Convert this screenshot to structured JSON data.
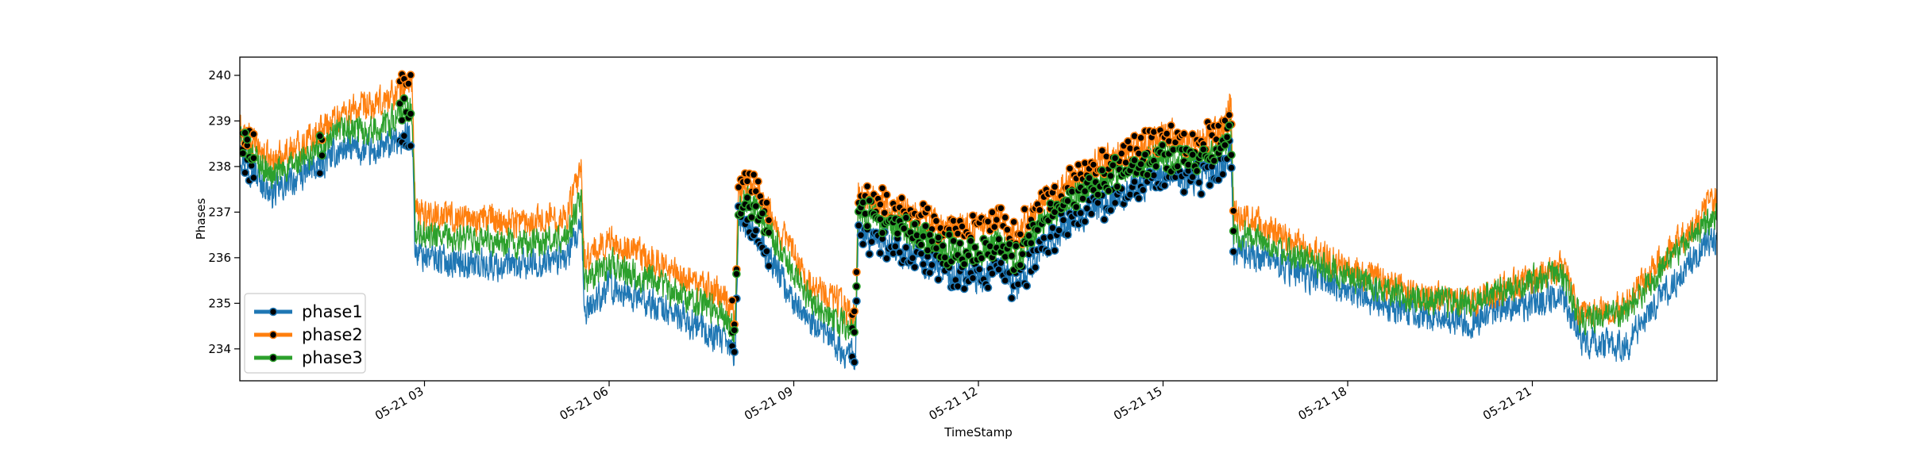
{
  "chart_data": {
    "type": "line",
    "title": "",
    "xlabel": "TimeStamp",
    "ylabel": "Phases",
    "xlim_hours": [
      0,
      24
    ],
    "ylim": [
      233.3,
      240.4
    ],
    "y_ticks": [
      234,
      235,
      236,
      237,
      238,
      239,
      240
    ],
    "x_ticks": [
      {
        "hour": 3,
        "label": "05-21 03"
      },
      {
        "hour": 6,
        "label": "05-21 06"
      },
      {
        "hour": 9,
        "label": "05-21 09"
      },
      {
        "hour": 12,
        "label": "05-21 12"
      },
      {
        "hour": 15,
        "label": "05-21 15"
      },
      {
        "hour": 18,
        "label": "05-21 18"
      },
      {
        "hour": 21,
        "label": "05-21 21"
      }
    ],
    "grid": false,
    "legend_position": "lower-left",
    "series": [
      {
        "name": "phase1",
        "color": "#1f77b4",
        "noise": 0.3,
        "points": [
          [
            0,
            238.3
          ],
          [
            0.5,
            237.4
          ],
          [
            1,
            237.8
          ],
          [
            1.7,
            238.4
          ],
          [
            2.2,
            238.3
          ],
          [
            2.8,
            238.7
          ],
          [
            2.85,
            236.1
          ],
          [
            3.5,
            235.9
          ],
          [
            4.5,
            235.8
          ],
          [
            5.3,
            236.0
          ],
          [
            5.55,
            236.6
          ],
          [
            5.6,
            234.8
          ],
          [
            6,
            235.4
          ],
          [
            7,
            234.8
          ],
          [
            7.8,
            234.2
          ],
          [
            8.05,
            233.9
          ],
          [
            8.1,
            236.8
          ],
          [
            8.3,
            236.7
          ],
          [
            8.6,
            236.0
          ],
          [
            9.2,
            234.6
          ],
          [
            9.8,
            234.0
          ],
          [
            10.0,
            233.8
          ],
          [
            10.05,
            236.5
          ],
          [
            10.5,
            236.3
          ],
          [
            11,
            236.0
          ],
          [
            11.5,
            235.7
          ],
          [
            12,
            235.5
          ],
          [
            12.3,
            235.9
          ],
          [
            12.6,
            235.3
          ],
          [
            13,
            236.2
          ],
          [
            13.5,
            236.8
          ],
          [
            14,
            237.2
          ],
          [
            14.5,
            237.5
          ],
          [
            15,
            237.9
          ],
          [
            15.5,
            237.7
          ],
          [
            16,
            238.0
          ],
          [
            16.1,
            238.5
          ],
          [
            16.15,
            236.2
          ],
          [
            17,
            235.8
          ],
          [
            18,
            235.3
          ],
          [
            19,
            234.8
          ],
          [
            20,
            234.6
          ],
          [
            20.5,
            234.9
          ],
          [
            21,
            235.0
          ],
          [
            21.5,
            235.2
          ],
          [
            21.8,
            234.2
          ],
          [
            22.5,
            234.0
          ],
          [
            23,
            235.0
          ],
          [
            24,
            236.5
          ]
        ]
      },
      {
        "name": "phase2",
        "color": "#ff7f0e",
        "noise": 0.3,
        "points": [
          [
            0,
            238.8
          ],
          [
            0.5,
            238.1
          ],
          [
            1,
            238.5
          ],
          [
            1.7,
            239.2
          ],
          [
            2.2,
            239.3
          ],
          [
            2.8,
            239.9
          ],
          [
            2.85,
            237.0
          ],
          [
            3.5,
            236.9
          ],
          [
            4.5,
            236.8
          ],
          [
            5.3,
            236.9
          ],
          [
            5.55,
            237.9
          ],
          [
            5.6,
            235.9
          ],
          [
            6,
            236.4
          ],
          [
            7,
            235.7
          ],
          [
            7.8,
            235.2
          ],
          [
            8.05,
            234.8
          ],
          [
            8.1,
            237.5
          ],
          [
            8.3,
            237.7
          ],
          [
            8.6,
            237.0
          ],
          [
            9.2,
            235.6
          ],
          [
            9.8,
            234.9
          ],
          [
            10.0,
            234.7
          ],
          [
            10.05,
            237.3
          ],
          [
            10.5,
            237.2
          ],
          [
            11,
            236.9
          ],
          [
            11.5,
            236.7
          ],
          [
            12,
            236.6
          ],
          [
            12.3,
            236.9
          ],
          [
            12.6,
            236.4
          ],
          [
            13,
            237.1
          ],
          [
            13.5,
            237.7
          ],
          [
            14,
            238.1
          ],
          [
            14.5,
            238.4
          ],
          [
            15,
            238.7
          ],
          [
            15.5,
            238.5
          ],
          [
            16,
            238.9
          ],
          [
            16.1,
            239.5
          ],
          [
            16.15,
            237.0
          ],
          [
            17,
            236.4
          ],
          [
            18,
            235.8
          ],
          [
            19,
            235.2
          ],
          [
            20,
            235.0
          ],
          [
            20.5,
            235.3
          ],
          [
            21,
            235.5
          ],
          [
            21.5,
            235.8
          ],
          [
            21.8,
            234.7
          ],
          [
            22.5,
            235.0
          ],
          [
            23,
            235.8
          ],
          [
            24,
            237.3
          ]
        ]
      },
      {
        "name": "phase3",
        "color": "#2ca02c",
        "noise": 0.28,
        "points": [
          [
            0,
            238.6
          ],
          [
            0.5,
            237.8
          ],
          [
            1,
            238.1
          ],
          [
            1.7,
            238.8
          ],
          [
            2.2,
            238.8
          ],
          [
            2.8,
            239.3
          ],
          [
            2.85,
            236.5
          ],
          [
            3.5,
            236.4
          ],
          [
            4.5,
            236.3
          ],
          [
            5.3,
            236.4
          ],
          [
            5.55,
            237.3
          ],
          [
            5.6,
            235.4
          ],
          [
            6,
            235.9
          ],
          [
            7,
            235.3
          ],
          [
            7.8,
            234.8
          ],
          [
            8.05,
            234.4
          ],
          [
            8.1,
            237.2
          ],
          [
            8.3,
            237.3
          ],
          [
            8.6,
            236.6
          ],
          [
            9.2,
            235.2
          ],
          [
            9.8,
            234.5
          ],
          [
            10.0,
            234.3
          ],
          [
            10.05,
            237.0
          ],
          [
            10.5,
            236.8
          ],
          [
            11,
            236.5
          ],
          [
            11.5,
            236.2
          ],
          [
            12,
            236.0
          ],
          [
            12.3,
            236.4
          ],
          [
            12.6,
            235.9
          ],
          [
            13,
            236.7
          ],
          [
            13.5,
            237.3
          ],
          [
            14,
            237.7
          ],
          [
            14.5,
            238.0
          ],
          [
            15,
            238.3
          ],
          [
            15.5,
            238.1
          ],
          [
            16,
            238.5
          ],
          [
            16.1,
            239.0
          ],
          [
            16.15,
            236.6
          ],
          [
            17,
            236.1
          ],
          [
            18,
            235.6
          ],
          [
            19,
            235.1
          ],
          [
            20,
            235.0
          ],
          [
            20.5,
            235.3
          ],
          [
            21,
            235.5
          ],
          [
            21.5,
            235.6
          ],
          [
            21.8,
            234.6
          ],
          [
            22.5,
            234.8
          ],
          [
            23,
            235.6
          ],
          [
            24,
            237.0
          ]
        ]
      }
    ],
    "markers": {
      "fill": "#000000",
      "size": 4.5,
      "ranges_hours": [
        [
          0.05,
          0.25
        ],
        [
          2.6,
          2.8
        ],
        [
          1.3,
          1.35
        ],
        [
          8.0,
          8.6
        ],
        [
          9.95,
          16.15
        ]
      ],
      "step_hours": 0.035
    }
  }
}
